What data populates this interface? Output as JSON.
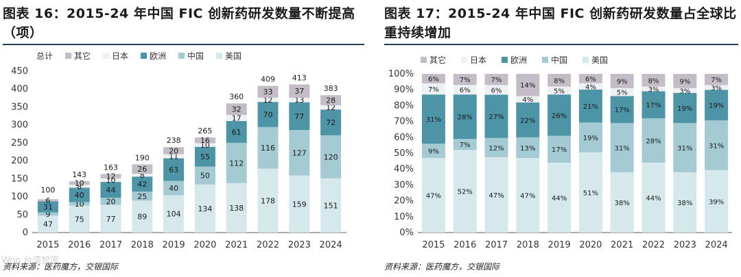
{
  "colors": {
    "other": "#c4bcc7",
    "japan": "#eef1f3",
    "europe": "#4d95a6",
    "china": "#a4cbd3",
    "usa": "#d5e8ec",
    "title_rule": "#1f3b5a"
  },
  "watermark": "Woo 台湾智库",
  "left": {
    "title": "图表 16：2015-24 年中国 FIC 创新药研发数量不断提高（项）",
    "source": "资料来源：医药魔方，交银国际",
    "chart_data": {
      "type": "bar",
      "stacked": true,
      "title": "图表 16：2015-24 年中国 FIC 创新药研发数量不断提高（项）",
      "categories": [
        "2015",
        "2016",
        "2017",
        "2018",
        "2019",
        "2020",
        "2021",
        "2022",
        "2023",
        "2024"
      ],
      "series": [
        {
          "name": "美国",
          "key": "usa",
          "values": [
            47,
            75,
            77,
            89,
            104,
            134,
            138,
            178,
            159,
            151
          ]
        },
        {
          "name": "中国",
          "key": "china",
          "values": [
            9,
            10,
            20,
            25,
            40,
            50,
            112,
            116,
            127,
            120
          ]
        },
        {
          "name": "欧洲",
          "key": "europe",
          "values": [
            31,
            40,
            44,
            42,
            63,
            55,
            61,
            70,
            77,
            72
          ]
        },
        {
          "name": "日本",
          "key": "japan",
          "values": [
            null,
            8,
            10,
            8,
            11,
            10,
            17,
            12,
            13,
            12
          ]
        },
        {
          "name": "其它",
          "key": "other",
          "values": [
            6,
            10,
            12,
            26,
            20,
            16,
            32,
            33,
            37,
            28
          ]
        }
      ],
      "totals_label": "总计",
      "totals": [
        100,
        143,
        163,
        190,
        238,
        265,
        360,
        409,
        413,
        383
      ],
      "legend": [
        {
          "label": "总计",
          "key": "total"
        },
        {
          "label": "其它",
          "key": "other"
        },
        {
          "label": "日本",
          "key": "japan"
        },
        {
          "label": "欧洲",
          "key": "europe"
        },
        {
          "label": "中国",
          "key": "china"
        },
        {
          "label": "美国",
          "key": "usa"
        }
      ],
      "legend_position": "top",
      "ylim": [
        0,
        450
      ],
      "yticks": [
        0,
        50,
        100,
        150,
        200,
        250,
        300,
        350,
        400,
        450
      ],
      "xlabel": "",
      "ylabel": ""
    }
  },
  "right": {
    "title": "图表 17：2015-24 年中国 FIC 创新药研发数量占全球比重持续增加",
    "source": "资料来源：医药魔方，交银国际",
    "chart_data": {
      "type": "bar",
      "stacked": true,
      "percent": true,
      "title": "图表 17：2015-24 年中国 FIC 创新药研发数量占全球比重持续增加",
      "categories": [
        "2015",
        "2016",
        "2017",
        "2018",
        "2019",
        "2020",
        "2021",
        "2022",
        "2023",
        "2024"
      ],
      "series": [
        {
          "name": "美国",
          "key": "usa",
          "values": [
            47,
            52,
            47,
            47,
            44,
            51,
            38,
            44,
            38,
            39
          ]
        },
        {
          "name": "中国",
          "key": "china",
          "values": [
            9,
            7,
            12,
            13,
            17,
            19,
            31,
            28,
            31,
            31
          ]
        },
        {
          "name": "欧洲",
          "key": "europe",
          "values": [
            31,
            28,
            27,
            22,
            26,
            21,
            17,
            17,
            19,
            19
          ]
        },
        {
          "name": "日本",
          "key": "japan",
          "values": [
            7,
            6,
            6,
            4,
            5,
            4,
            5,
            3,
            3,
            3
          ]
        },
        {
          "name": "其它",
          "key": "other",
          "values": [
            6,
            7,
            7,
            14,
            8,
            6,
            9,
            8,
            9,
            7
          ]
        }
      ],
      "legend": [
        {
          "label": "其它",
          "key": "other"
        },
        {
          "label": "日本",
          "key": "japan"
        },
        {
          "label": "欧洲",
          "key": "europe"
        },
        {
          "label": "中国",
          "key": "china"
        },
        {
          "label": "美国",
          "key": "usa"
        }
      ],
      "legend_position": "top",
      "ylim": [
        0,
        100
      ],
      "ytick_labels": [
        "0%",
        "10%",
        "20%",
        "30%",
        "40%",
        "50%",
        "60%",
        "70%",
        "80%",
        "90%",
        "100%"
      ],
      "xlabel": "",
      "ylabel": ""
    }
  }
}
